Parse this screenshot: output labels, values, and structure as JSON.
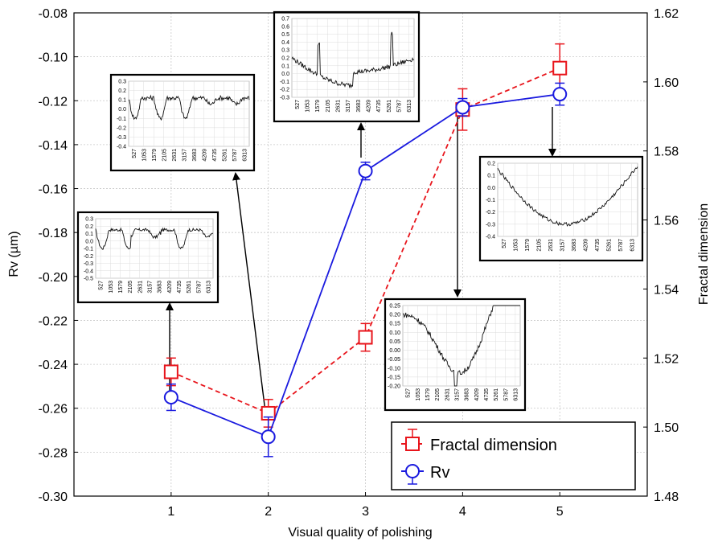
{
  "chart_data": {
    "type": "line",
    "x_label": "Visual quality of polishing",
    "y_left_label": "Rv (µm)",
    "y_right_label": "Fractal dimension",
    "x_ticks": [
      "1",
      "2",
      "3",
      "4",
      "5"
    ],
    "y_left_ticks": [
      "-0.08",
      "-0.10",
      "-0.12",
      "-0.14",
      "-0.16",
      "-0.18",
      "-0.20",
      "-0.22",
      "-0.24",
      "-0.26",
      "-0.28",
      "-0.30"
    ],
    "y_right_ticks": [
      "1.62",
      "1.60",
      "1.58",
      "1.56",
      "1.54",
      "1.52",
      "1.50",
      "1.48"
    ],
    "y_left_range": [
      -0.3,
      -0.08
    ],
    "y_right_range": [
      1.48,
      1.62
    ],
    "x_range": [
      0,
      5.9
    ],
    "grid": true,
    "legend_position": "bottom-right",
    "series": [
      {
        "name": "Fractal dimension",
        "axis": "right",
        "color": "#e8141b",
        "line_style": "dashed",
        "marker": "square",
        "x": [
          1,
          2,
          3,
          4,
          5
        ],
        "y": [
          1.516,
          1.504,
          1.526,
          1.592,
          1.604
        ],
        "err": [
          0.004,
          0.004,
          0.004,
          0.006,
          0.007
        ]
      },
      {
        "name": "Rv",
        "axis": "left",
        "color": "#1a1adf",
        "line_style": "solid",
        "marker": "circle",
        "x": [
          1,
          2,
          3,
          4,
          5
        ],
        "y": [
          -0.255,
          -0.273,
          -0.152,
          -0.123,
          -0.117
        ],
        "err": [
          0.006,
          0.009,
          0.004,
          0.004,
          0.005
        ]
      }
    ],
    "insets": [
      {
        "y_ticks": [
          "0.3",
          "0.2",
          "0.1",
          "0.0",
          "-0.1",
          "-0.2",
          "-0.3",
          "-0.4",
          "-0.5"
        ],
        "x_ticks": [
          "527",
          "1053",
          "1579",
          "2105",
          "2631",
          "3157",
          "3683",
          "4209",
          "4735",
          "5261",
          "5787",
          "6313"
        ]
      },
      {
        "y_ticks": [
          "0.3",
          "0.2",
          "0.1",
          "0.0",
          "-0.1",
          "-0.2",
          "-0.3",
          "-0.4"
        ],
        "x_ticks": [
          "527",
          "1053",
          "1579",
          "2105",
          "2631",
          "3157",
          "3683",
          "4209",
          "4735",
          "5261",
          "5787",
          "6313"
        ]
      },
      {
        "y_ticks": [
          "0.7",
          "0.6",
          "0.5",
          "0.4",
          "0.3",
          "0.2",
          "0.1",
          "0.0",
          "-0.1",
          "-0.2",
          "-0.3"
        ],
        "x_ticks": [
          "527",
          "1053",
          "1579",
          "2105",
          "2631",
          "3157",
          "3683",
          "4209",
          "4735",
          "5261",
          "5787",
          "6313"
        ]
      },
      {
        "y_ticks": [
          "0.25",
          "0.20",
          "0.15",
          "0.10",
          "0.05",
          "0.00",
          "-0.05",
          "-0.10",
          "-0.15",
          "-0.20"
        ],
        "x_ticks": [
          "527",
          "1053",
          "1579",
          "2105",
          "2631",
          "3157",
          "3683",
          "4209",
          "4735",
          "5261",
          "5787",
          "6313"
        ]
      },
      {
        "y_ticks": [
          "0.2",
          "0.1",
          "0.0",
          "-0.1",
          "-0.2",
          "-0.3",
          "-0.4"
        ],
        "x_ticks": [
          "527",
          "1053",
          "1579",
          "2105",
          "2631",
          "3157",
          "3683",
          "4209",
          "4735",
          "5261",
          "5787",
          "6313"
        ]
      }
    ]
  }
}
